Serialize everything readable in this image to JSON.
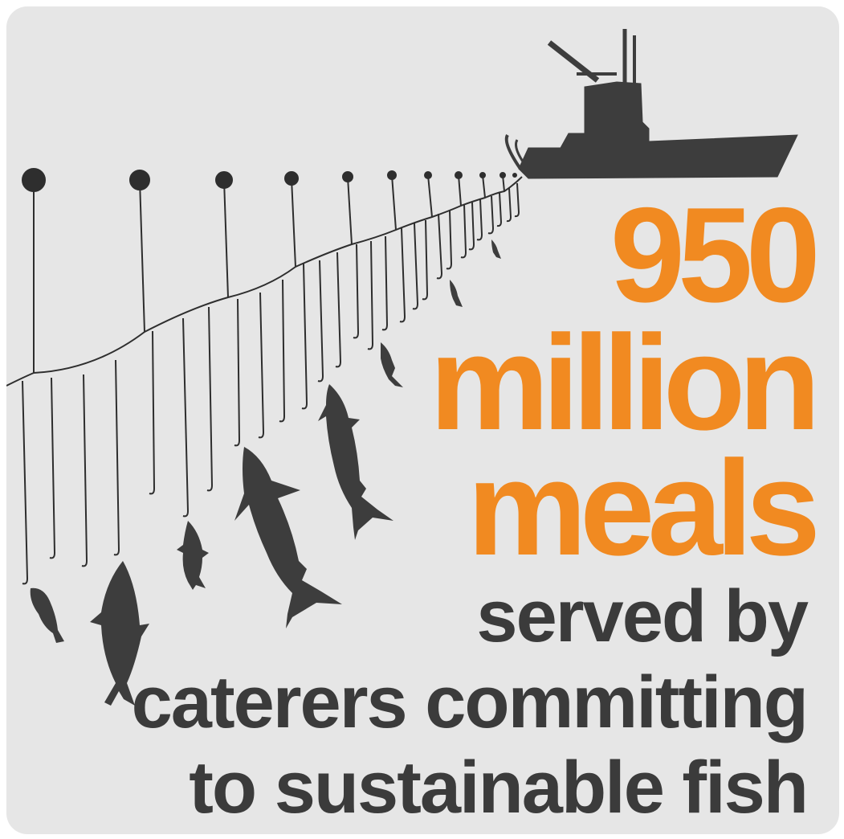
{
  "headline": {
    "line1": "950",
    "line2": "million",
    "line3": "meals"
  },
  "subline": {
    "line1": "served by",
    "line2": "caterers committing",
    "line3": "to sustainable fish"
  },
  "colors": {
    "background": "#e6e6e6",
    "accent": "#f18a21",
    "dark": "#3b3b3b"
  },
  "icons": [
    "fishing-boat-icon",
    "float-buoy-icon",
    "hook-icon",
    "fish-icon",
    "tuna-icon"
  ]
}
